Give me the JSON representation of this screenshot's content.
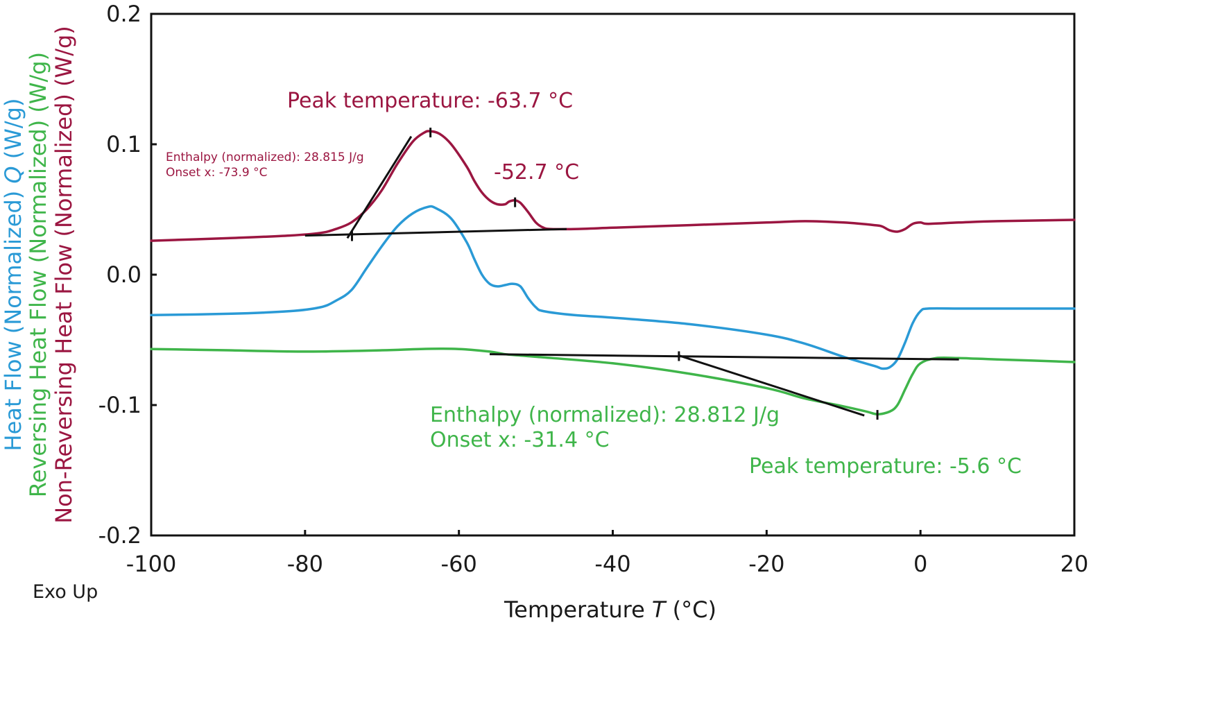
{
  "colors": {
    "heat_flow": "#2a9ad6",
    "reversing": "#3fb54a",
    "non_reversing": "#9b1641",
    "axis": "#111111"
  },
  "chart_data": {
    "type": "line",
    "xlabel": "Temperature T (°C)",
    "xlabel_parts": {
      "pre": "Temperature ",
      "italic": "T",
      "post": " (°C)"
    },
    "xlim": [
      -100,
      20
    ],
    "ylim": [
      -0.2,
      0.2
    ],
    "xticks": [
      "-100",
      "-80",
      "-60",
      "-40",
      "-20",
      "0",
      "20"
    ],
    "xtick_values": [
      -100,
      -80,
      -60,
      -40,
      -20,
      0,
      20
    ],
    "yticks": [
      "-0.2",
      "-0.1",
      "0.0",
      "0.1",
      "0.2"
    ],
    "ytick_values": [
      -0.2,
      -0.1,
      0.0,
      0.1,
      0.2
    ],
    "ylabels": [
      {
        "pre": "Heat Flow (Normalized) ",
        "italic": "Q",
        "post": " (W/g)"
      },
      {
        "pre": "Reversing Heat Flow (Normalized) (W/g)",
        "italic": "",
        "post": ""
      },
      {
        "pre": "Non-Reversing Heat Flow (Normalized) (W/g)",
        "italic": "",
        "post": ""
      }
    ],
    "exo_label": "Exo Up",
    "series": [
      {
        "name": "Non-Reversing Heat Flow (Normalized)",
        "points": [
          [
            -100,
            0.026
          ],
          [
            -90,
            0.028
          ],
          [
            -82,
            0.03
          ],
          [
            -78,
            0.032
          ],
          [
            -76,
            0.035
          ],
          [
            -74,
            0.04
          ],
          [
            -72,
            0.05
          ],
          [
            -70,
            0.065
          ],
          [
            -68,
            0.085
          ],
          [
            -66,
            0.102
          ],
          [
            -64.5,
            0.109
          ],
          [
            -63.7,
            0.11
          ],
          [
            -62.5,
            0.108
          ],
          [
            -61,
            0.1
          ],
          [
            -59,
            0.083
          ],
          [
            -58,
            0.072
          ],
          [
            -57,
            0.063
          ],
          [
            -56,
            0.057
          ],
          [
            -55,
            0.054
          ],
          [
            -54,
            0.054
          ],
          [
            -53.5,
            0.056
          ],
          [
            -52.7,
            0.057
          ],
          [
            -52,
            0.055
          ],
          [
            -51,
            0.048
          ],
          [
            -50,
            0.04
          ],
          [
            -49,
            0.036
          ],
          [
            -48,
            0.035
          ],
          [
            -45,
            0.035
          ],
          [
            -40,
            0.036
          ],
          [
            -30,
            0.038
          ],
          [
            -20,
            0.04
          ],
          [
            -15,
            0.041
          ],
          [
            -10,
            0.04
          ],
          [
            -6,
            0.038
          ],
          [
            -5,
            0.037
          ],
          [
            -4,
            0.034
          ],
          [
            -3,
            0.033
          ],
          [
            -2,
            0.035
          ],
          [
            -1,
            0.039
          ],
          [
            0,
            0.04
          ],
          [
            1,
            0.039
          ],
          [
            5,
            0.04
          ],
          [
            10,
            0.041
          ],
          [
            20,
            0.042
          ]
        ]
      },
      {
        "name": "Heat Flow (Normalized)",
        "points": [
          [
            -100,
            -0.031
          ],
          [
            -90,
            -0.03
          ],
          [
            -82,
            -0.028
          ],
          [
            -78,
            -0.025
          ],
          [
            -76,
            -0.02
          ],
          [
            -74,
            -0.012
          ],
          [
            -72,
            0.005
          ],
          [
            -70,
            0.022
          ],
          [
            -68,
            0.037
          ],
          [
            -66,
            0.047
          ],
          [
            -64,
            0.052
          ],
          [
            -63,
            0.051
          ],
          [
            -61,
            0.043
          ],
          [
            -59,
            0.025
          ],
          [
            -58,
            0.012
          ],
          [
            -57,
            0.0
          ],
          [
            -56,
            -0.007
          ],
          [
            -55,
            -0.009
          ],
          [
            -54,
            -0.008
          ],
          [
            -53,
            -0.007
          ],
          [
            -52,
            -0.009
          ],
          [
            -51,
            -0.018
          ],
          [
            -50,
            -0.025
          ],
          [
            -49,
            -0.028
          ],
          [
            -45,
            -0.031
          ],
          [
            -40,
            -0.033
          ],
          [
            -30,
            -0.038
          ],
          [
            -20,
            -0.046
          ],
          [
            -15,
            -0.053
          ],
          [
            -10,
            -0.063
          ],
          [
            -6,
            -0.07
          ],
          [
            -5,
            -0.072
          ],
          [
            -4,
            -0.071
          ],
          [
            -3,
            -0.065
          ],
          [
            -2,
            -0.052
          ],
          [
            -1,
            -0.037
          ],
          [
            0,
            -0.028
          ],
          [
            1,
            -0.026
          ],
          [
            5,
            -0.026
          ],
          [
            10,
            -0.026
          ],
          [
            20,
            -0.026
          ]
        ]
      },
      {
        "name": "Reversing Heat Flow (Normalized)",
        "points": [
          [
            -100,
            -0.057
          ],
          [
            -90,
            -0.058
          ],
          [
            -80,
            -0.059
          ],
          [
            -70,
            -0.058
          ],
          [
            -65,
            -0.057
          ],
          [
            -60,
            -0.057
          ],
          [
            -56,
            -0.059
          ],
          [
            -54,
            -0.061
          ],
          [
            -52,
            -0.062
          ],
          [
            -50,
            -0.063
          ],
          [
            -40,
            -0.068
          ],
          [
            -30,
            -0.076
          ],
          [
            -20,
            -0.087
          ],
          [
            -15,
            -0.095
          ],
          [
            -10,
            -0.101
          ],
          [
            -7,
            -0.105
          ],
          [
            -5.6,
            -0.107
          ],
          [
            -4,
            -0.105
          ],
          [
            -3,
            -0.1
          ],
          [
            -2,
            -0.088
          ],
          [
            -1,
            -0.076
          ],
          [
            0,
            -0.068
          ],
          [
            2,
            -0.064
          ],
          [
            5,
            -0.064
          ],
          [
            10,
            -0.065
          ],
          [
            20,
            -0.067
          ]
        ]
      }
    ],
    "annotations": [
      {
        "series": "non_reversing",
        "text": "Peak temperature: -63.7 °C"
      },
      {
        "series": "non_reversing",
        "text": "-52.7 °C"
      },
      {
        "series": "non_reversing",
        "text": "Enthalpy (normalized): 28.815 J/g"
      },
      {
        "series": "non_reversing",
        "text": "Onset x: -73.9 °C"
      },
      {
        "series": "reversing",
        "text": "Enthalpy (normalized): 28.812 J/g"
      },
      {
        "series": "reversing",
        "text": "Onset x: -31.4 °C"
      },
      {
        "series": "reversing",
        "text": "Peak temperature: -5.6 °C"
      }
    ],
    "constructions": [
      {
        "kind": "baseline",
        "series": "non_reversing",
        "from": [
          -80,
          0.03
        ],
        "to": [
          -46,
          0.035
        ]
      },
      {
        "kind": "tangent",
        "series": "non_reversing",
        "from": [
          -74.5,
          0.028
        ],
        "to": [
          -66.2,
          0.106
        ]
      },
      {
        "kind": "baseline",
        "series": "reversing",
        "from": [
          -56,
          -0.061
        ],
        "to": [
          5,
          -0.065
        ]
      },
      {
        "kind": "tangent",
        "series": "reversing",
        "from": [
          -31.4,
          -0.062
        ],
        "to": [
          -7.3,
          -0.108
        ]
      }
    ],
    "markers": [
      {
        "series": "non_reversing",
        "x": -63.7,
        "y": 0.109
      },
      {
        "series": "non_reversing",
        "x": -52.7,
        "y": 0.0555
      },
      {
        "series": "non_reversing",
        "x": -73.9,
        "y": 0.0295
      },
      {
        "series": "reversing",
        "x": -31.4,
        "y": -0.0625
      },
      {
        "series": "reversing",
        "x": -5.6,
        "y": -0.1075
      }
    ]
  }
}
